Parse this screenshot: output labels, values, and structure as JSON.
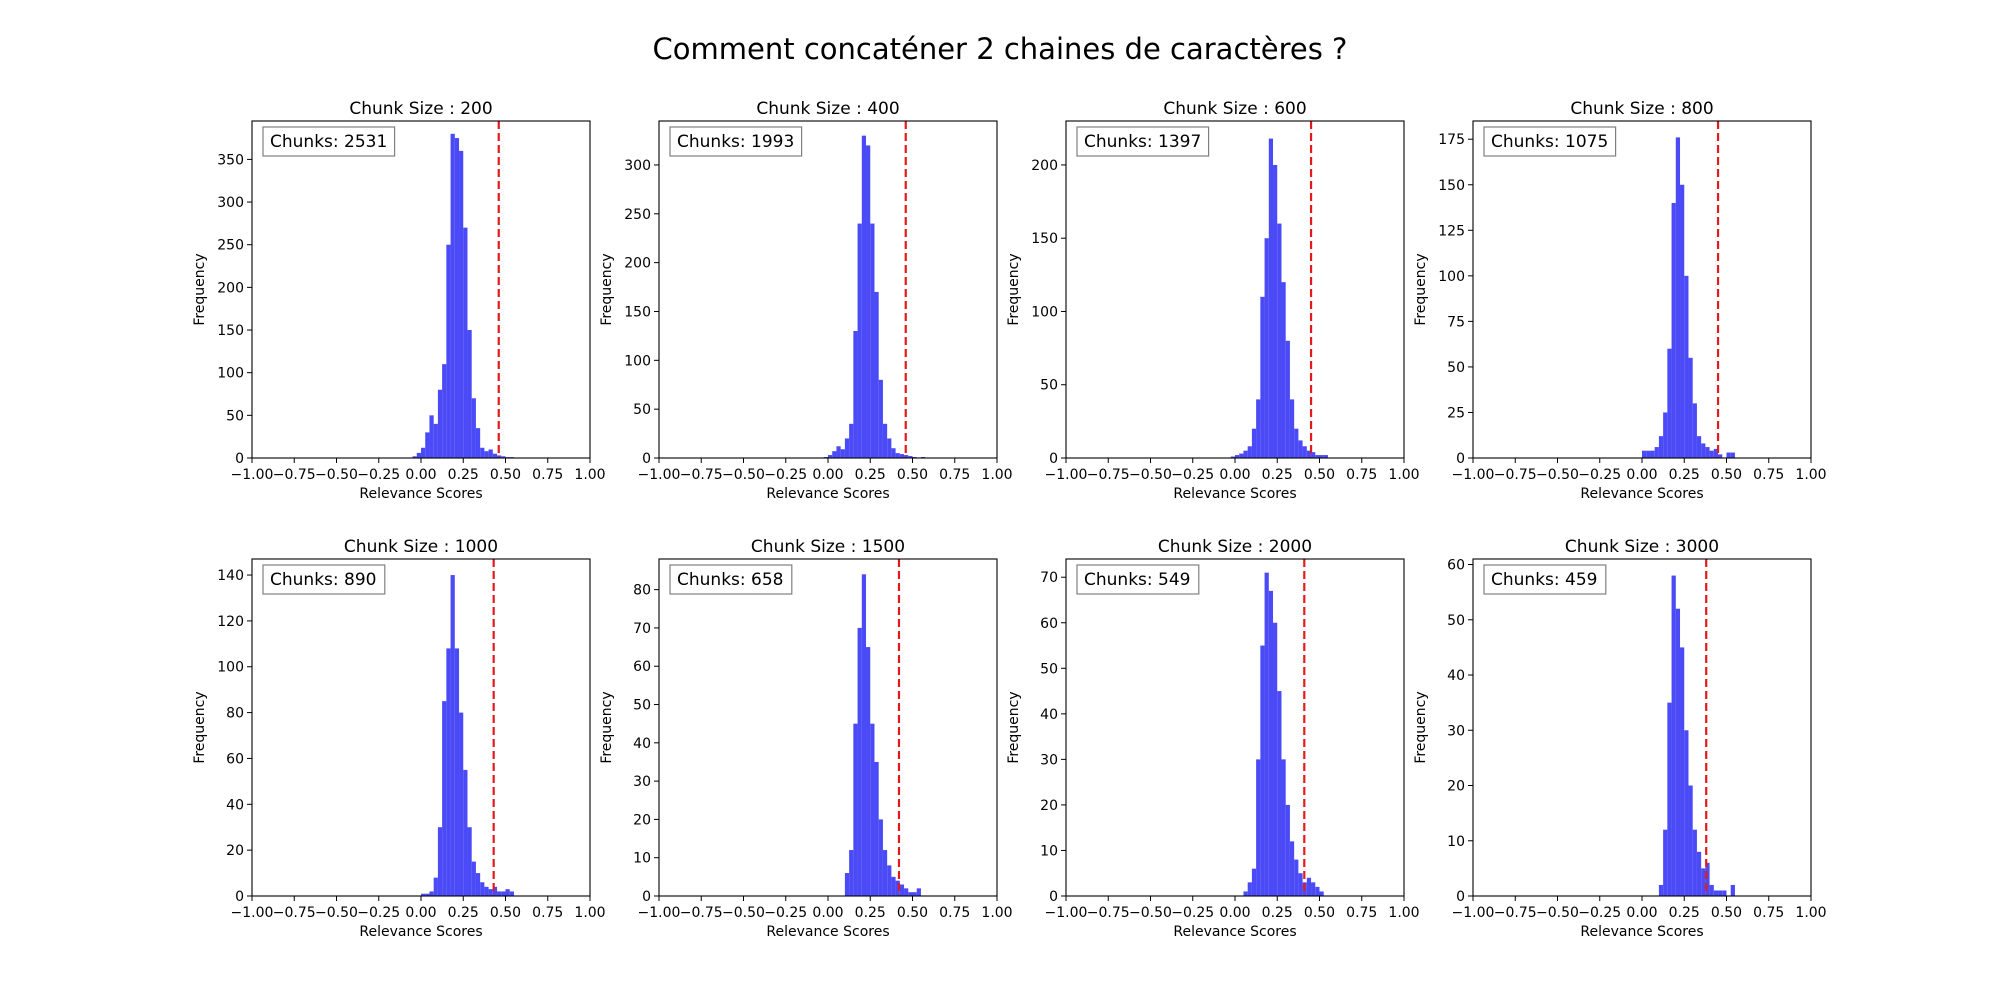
{
  "figure": {
    "title": "Comment concaténer 2 chaines de caractères ?"
  },
  "colors": {
    "bar": "#4a4af7",
    "threshold_line": "#e31a1c",
    "axis": "#000000",
    "annotation_border": "#808080"
  },
  "chart_data": [
    {
      "type": "bar",
      "title": "Chunk Size : 200",
      "annotation": "Chunks: 2531",
      "xlabel": "Relevance Scores",
      "ylabel": "Frequency",
      "xlim": [
        -1.0,
        1.0
      ],
      "ylim": [
        0,
        395
      ],
      "xticks": [
        "−1.00",
        "−0.75",
        "−0.50",
        "−0.25",
        "0.00",
        "0.25",
        "0.50",
        "0.75",
        "1.00"
      ],
      "yticks": [
        0,
        50,
        100,
        150,
        200,
        250,
        300,
        350
      ],
      "threshold": 0.46,
      "bin_width": 0.025,
      "bins": [
        [
          -0.05,
          2
        ],
        [
          -0.025,
          6
        ],
        [
          0.0,
          12
        ],
        [
          0.025,
          30
        ],
        [
          0.05,
          50
        ],
        [
          0.075,
          40
        ],
        [
          0.1,
          80
        ],
        [
          0.125,
          110
        ],
        [
          0.15,
          250
        ],
        [
          0.175,
          380
        ],
        [
          0.2,
          375
        ],
        [
          0.225,
          360
        ],
        [
          0.25,
          270
        ],
        [
          0.275,
          150
        ],
        [
          0.3,
          70
        ],
        [
          0.325,
          35
        ],
        [
          0.35,
          12
        ],
        [
          0.375,
          8
        ],
        [
          0.4,
          10
        ],
        [
          0.425,
          5
        ],
        [
          0.45,
          3
        ],
        [
          0.475,
          2
        ],
        [
          0.5,
          1
        ],
        [
          0.525,
          1
        ]
      ]
    },
    {
      "type": "bar",
      "title": "Chunk Size : 400",
      "annotation": "Chunks: 1993",
      "xlabel": "Relevance Scores",
      "ylabel": "Frequency",
      "xlim": [
        -1.0,
        1.0
      ],
      "ylim": [
        0,
        345
      ],
      "xticks": [
        "−1.00",
        "−0.75",
        "−0.50",
        "−0.25",
        "0.00",
        "0.25",
        "0.50",
        "0.75",
        "1.00"
      ],
      "yticks": [
        0,
        50,
        100,
        150,
        200,
        250,
        300
      ],
      "threshold": 0.46,
      "bin_width": 0.025,
      "bins": [
        [
          -0.025,
          1
        ],
        [
          0.0,
          3
        ],
        [
          0.025,
          7
        ],
        [
          0.05,
          12
        ],
        [
          0.075,
          9
        ],
        [
          0.1,
          20
        ],
        [
          0.125,
          35
        ],
        [
          0.15,
          130
        ],
        [
          0.175,
          240
        ],
        [
          0.2,
          330
        ],
        [
          0.225,
          320
        ],
        [
          0.25,
          240
        ],
        [
          0.275,
          170
        ],
        [
          0.3,
          80
        ],
        [
          0.325,
          35
        ],
        [
          0.35,
          20
        ],
        [
          0.375,
          10
        ],
        [
          0.4,
          5
        ],
        [
          0.425,
          4
        ],
        [
          0.45,
          3
        ],
        [
          0.475,
          2
        ],
        [
          0.5,
          1
        ],
        [
          0.55,
          1
        ]
      ]
    },
    {
      "type": "bar",
      "title": "Chunk Size : 600",
      "annotation": "Chunks: 1397",
      "xlabel": "Relevance Scores",
      "ylabel": "Frequency",
      "xlim": [
        -1.0,
        1.0
      ],
      "ylim": [
        0,
        230
      ],
      "xticks": [
        "−1.00",
        "−0.75",
        "−0.50",
        "−0.25",
        "0.00",
        "0.25",
        "0.50",
        "0.75",
        "1.00"
      ],
      "yticks": [
        0,
        50,
        100,
        150,
        200
      ],
      "threshold": 0.45,
      "bin_width": 0.025,
      "bins": [
        [
          -0.025,
          1
        ],
        [
          0.0,
          2
        ],
        [
          0.025,
          3
        ],
        [
          0.05,
          5
        ],
        [
          0.075,
          8
        ],
        [
          0.1,
          20
        ],
        [
          0.125,
          40
        ],
        [
          0.15,
          110
        ],
        [
          0.175,
          150
        ],
        [
          0.2,
          218
        ],
        [
          0.225,
          200
        ],
        [
          0.25,
          160
        ],
        [
          0.275,
          120
        ],
        [
          0.3,
          80
        ],
        [
          0.325,
          40
        ],
        [
          0.35,
          20
        ],
        [
          0.375,
          12
        ],
        [
          0.4,
          8
        ],
        [
          0.425,
          5
        ],
        [
          0.45,
          4
        ],
        [
          0.475,
          2
        ],
        [
          0.5,
          2
        ],
        [
          0.525,
          2
        ]
      ]
    },
    {
      "type": "bar",
      "title": "Chunk Size : 800",
      "annotation": "Chunks: 1075",
      "xlabel": "Relevance Scores",
      "ylabel": "Frequency",
      "xlim": [
        -1.0,
        1.0
      ],
      "ylim": [
        0,
        185
      ],
      "xticks": [
        "−1.00",
        "−0.75",
        "−0.50",
        "−0.25",
        "0.00",
        "0.25",
        "0.50",
        "0.75",
        "1.00"
      ],
      "yticks": [
        0,
        25,
        50,
        75,
        100,
        125,
        150,
        175
      ],
      "threshold": 0.45,
      "bin_width": 0.025,
      "bins": [
        [
          0.0,
          4
        ],
        [
          0.025,
          4
        ],
        [
          0.05,
          4
        ],
        [
          0.075,
          6
        ],
        [
          0.1,
          12
        ],
        [
          0.125,
          25
        ],
        [
          0.15,
          60
        ],
        [
          0.175,
          140
        ],
        [
          0.2,
          176
        ],
        [
          0.225,
          150
        ],
        [
          0.25,
          100
        ],
        [
          0.275,
          55
        ],
        [
          0.3,
          30
        ],
        [
          0.325,
          12
        ],
        [
          0.35,
          8
        ],
        [
          0.375,
          6
        ],
        [
          0.4,
          4
        ],
        [
          0.425,
          5
        ],
        [
          0.45,
          2
        ],
        [
          0.5,
          3
        ],
        [
          0.525,
          3
        ]
      ]
    },
    {
      "type": "bar",
      "title": "Chunk Size : 1000",
      "annotation": "Chunks: 890",
      "xlabel": "Relevance Scores",
      "ylabel": "Frequency",
      "xlim": [
        -1.0,
        1.0
      ],
      "ylim": [
        0,
        147
      ],
      "xticks": [
        "−1.00",
        "−0.75",
        "−0.50",
        "−0.25",
        "0.00",
        "0.25",
        "0.50",
        "0.75",
        "1.00"
      ],
      "yticks": [
        0,
        20,
        40,
        60,
        80,
        100,
        120,
        140
      ],
      "threshold": 0.43,
      "bin_width": 0.025,
      "bins": [
        [
          0.0,
          1
        ],
        [
          0.025,
          1
        ],
        [
          0.05,
          2
        ],
        [
          0.075,
          8
        ],
        [
          0.1,
          30
        ],
        [
          0.125,
          85
        ],
        [
          0.15,
          108
        ],
        [
          0.175,
          140
        ],
        [
          0.2,
          108
        ],
        [
          0.225,
          80
        ],
        [
          0.25,
          55
        ],
        [
          0.275,
          30
        ],
        [
          0.3,
          15
        ],
        [
          0.325,
          10
        ],
        [
          0.35,
          6
        ],
        [
          0.375,
          4
        ],
        [
          0.4,
          3
        ],
        [
          0.425,
          4
        ],
        [
          0.45,
          2
        ],
        [
          0.475,
          2
        ],
        [
          0.5,
          3
        ],
        [
          0.525,
          2
        ]
      ]
    },
    {
      "type": "bar",
      "title": "Chunk Size : 1500",
      "annotation": "Chunks: 658",
      "xlabel": "Relevance Scores",
      "ylabel": "Frequency",
      "xlim": [
        -1.0,
        1.0
      ],
      "ylim": [
        0,
        88
      ],
      "xticks": [
        "−1.00",
        "−0.75",
        "−0.50",
        "−0.25",
        "0.00",
        "0.25",
        "0.50",
        "0.75",
        "1.00"
      ],
      "yticks": [
        0,
        10,
        20,
        30,
        40,
        50,
        60,
        70,
        80
      ],
      "threshold": 0.42,
      "bin_width": 0.025,
      "bins": [
        [
          0.1,
          6
        ],
        [
          0.125,
          12
        ],
        [
          0.15,
          45
        ],
        [
          0.175,
          70
        ],
        [
          0.2,
          84
        ],
        [
          0.225,
          65
        ],
        [
          0.25,
          45
        ],
        [
          0.275,
          35
        ],
        [
          0.3,
          20
        ],
        [
          0.325,
          12
        ],
        [
          0.35,
          8
        ],
        [
          0.375,
          5
        ],
        [
          0.4,
          4
        ],
        [
          0.425,
          3
        ],
        [
          0.45,
          2
        ],
        [
          0.475,
          1
        ],
        [
          0.5,
          1
        ],
        [
          0.525,
          2
        ]
      ]
    },
    {
      "type": "bar",
      "title": "Chunk Size : 2000",
      "annotation": "Chunks: 549",
      "xlabel": "Relevance Scores",
      "ylabel": "Frequency",
      "xlim": [
        -1.0,
        1.0
      ],
      "ylim": [
        0,
        74
      ],
      "xticks": [
        "−1.00",
        "−0.75",
        "−0.50",
        "−0.25",
        "0.00",
        "0.25",
        "0.50",
        "0.75",
        "1.00"
      ],
      "yticks": [
        0,
        10,
        20,
        30,
        40,
        50,
        60,
        70
      ],
      "threshold": 0.41,
      "bin_width": 0.025,
      "bins": [
        [
          0.05,
          1
        ],
        [
          0.075,
          3
        ],
        [
          0.1,
          6
        ],
        [
          0.125,
          30
        ],
        [
          0.15,
          55
        ],
        [
          0.175,
          71
        ],
        [
          0.2,
          67
        ],
        [
          0.225,
          60
        ],
        [
          0.25,
          45
        ],
        [
          0.275,
          30
        ],
        [
          0.3,
          20
        ],
        [
          0.325,
          12
        ],
        [
          0.35,
          8
        ],
        [
          0.375,
          5
        ],
        [
          0.4,
          3
        ],
        [
          0.425,
          4
        ],
        [
          0.45,
          3
        ],
        [
          0.475,
          2
        ],
        [
          0.5,
          1
        ]
      ]
    },
    {
      "type": "bar",
      "title": "Chunk Size : 3000",
      "annotation": "Chunks: 459",
      "xlabel": "Relevance Scores",
      "ylabel": "Frequency",
      "xlim": [
        -1.0,
        1.0
      ],
      "ylim": [
        0,
        61
      ],
      "xticks": [
        "−1.00",
        "−0.75",
        "−0.50",
        "−0.25",
        "0.00",
        "0.25",
        "0.50",
        "0.75",
        "1.00"
      ],
      "yticks": [
        0,
        10,
        20,
        30,
        40,
        50,
        60
      ],
      "threshold": 0.38,
      "bin_width": 0.025,
      "bins": [
        [
          0.1,
          2
        ],
        [
          0.125,
          12
        ],
        [
          0.15,
          35
        ],
        [
          0.175,
          58
        ],
        [
          0.2,
          52
        ],
        [
          0.225,
          45
        ],
        [
          0.25,
          30
        ],
        [
          0.275,
          20
        ],
        [
          0.3,
          12
        ],
        [
          0.325,
          8
        ],
        [
          0.35,
          5
        ],
        [
          0.375,
          6
        ],
        [
          0.4,
          2
        ],
        [
          0.425,
          1
        ],
        [
          0.45,
          1
        ],
        [
          0.475,
          1
        ],
        [
          0.525,
          2
        ]
      ]
    }
  ]
}
